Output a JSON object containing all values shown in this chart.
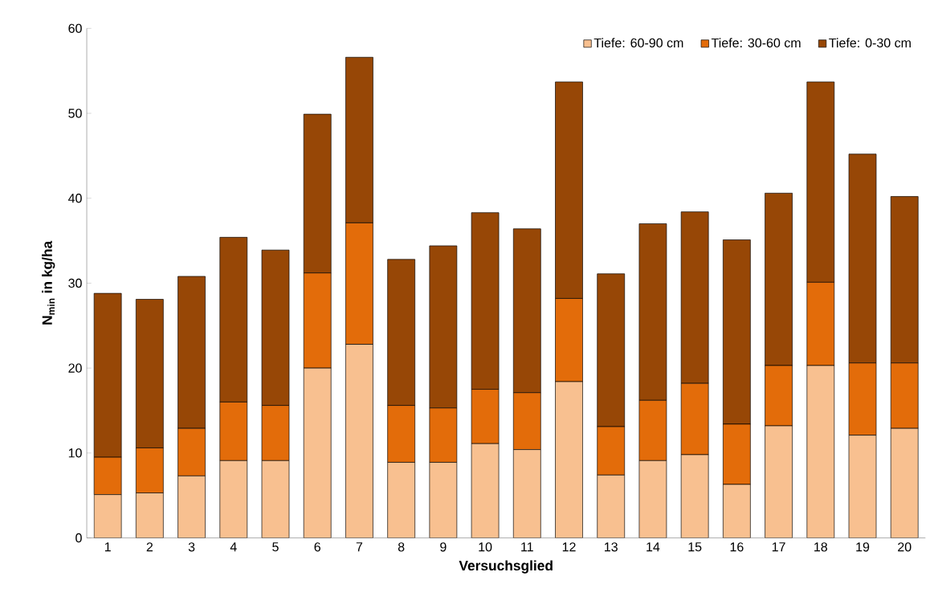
{
  "chart_data": {
    "type": "bar",
    "stacked": true,
    "xlabel": "Versuchsglied",
    "ylabel": "N$_{min}$ in kg/ha",
    "categories": [
      "1",
      "2",
      "3",
      "4",
      "5",
      "6",
      "7",
      "8",
      "9",
      "10",
      "11",
      "12",
      "13",
      "14",
      "15",
      "16",
      "17",
      "18",
      "19",
      "20"
    ],
    "series": [
      {
        "name": "Tiefe: 60-90 cm",
        "color": "#f8c090",
        "values": [
          5.1,
          5.3,
          7.3,
          9.1,
          9.1,
          20.0,
          22.8,
          8.9,
          8.9,
          11.1,
          10.4,
          18.4,
          7.4,
          9.1,
          9.8,
          6.3,
          13.2,
          20.3,
          12.1,
          12.9
        ]
      },
      {
        "name": "Tiefe: 30-60 cm",
        "color": "#e36c0a",
        "values": [
          4.4,
          5.3,
          5.6,
          6.9,
          6.5,
          11.2,
          14.3,
          6.7,
          6.4,
          6.4,
          6.7,
          9.8,
          5.7,
          7.1,
          8.4,
          7.1,
          7.1,
          9.8,
          8.5,
          7.7
        ]
      },
      {
        "name": "Tiefe: 0-30 cm",
        "color": "#974706",
        "values": [
          19.3,
          17.5,
          17.9,
          19.4,
          18.3,
          18.7,
          19.5,
          17.2,
          19.1,
          20.8,
          19.3,
          25.5,
          18.0,
          20.8,
          20.2,
          21.7,
          20.3,
          23.6,
          24.6,
          19.6
        ]
      }
    ],
    "ylim": [
      0,
      60
    ],
    "yticks": [
      0,
      10,
      20,
      30,
      40,
      50,
      60
    ],
    "legend": "top right",
    "grid": false
  }
}
